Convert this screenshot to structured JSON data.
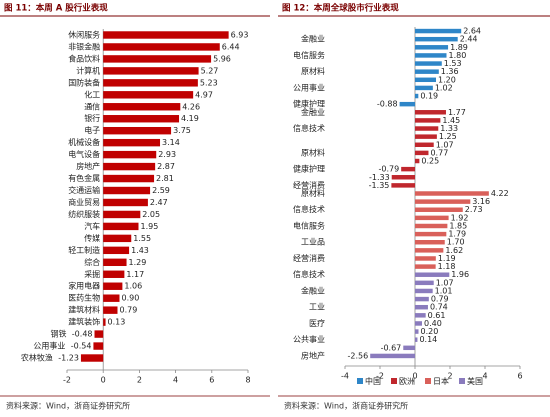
{
  "chart_data": [
    {
      "type": "bar",
      "title": "图 11：本周 A 股行业表现",
      "source": "资料来源：Wind，浙商证券研究所",
      "color": "#c00000",
      "categories": [
        "休闲服务",
        "非银金融",
        "食品饮料",
        "计算机",
        "国防装备",
        "化工",
        "通信",
        "银行",
        "电子",
        "机械设备",
        "电气设备",
        "房地产",
        "有色金属",
        "交通运输",
        "商业贸易",
        "纺织服装",
        "汽车",
        "传媒",
        "轻工制造",
        "综合",
        "采掘",
        "家用电器",
        "医药生物",
        "建筑材料",
        "建筑装饰",
        "钢铁",
        "公用事业",
        "农林牧渔"
      ],
      "values": [
        6.93,
        6.44,
        5.96,
        5.27,
        5.23,
        4.97,
        4.26,
        4.19,
        3.75,
        3.14,
        2.93,
        2.87,
        2.81,
        2.59,
        2.47,
        2.05,
        1.95,
        1.55,
        1.43,
        1.29,
        1.17,
        1.06,
        0.9,
        0.79,
        0.13,
        -0.48,
        -0.54,
        -1.23
      ],
      "value_labels": [
        "6.93",
        "6.44",
        "5.96",
        "5.27",
        "5.23",
        "4.97",
        "4.26",
        "4.19",
        "3.75",
        "3.14",
        "2.93",
        "2.87",
        "2.81",
        "2.59",
        "2.47",
        "2.05",
        "1.95",
        "1.55",
        "1.43",
        "1.29",
        "1.17",
        "1.06",
        "0.90",
        "0.79",
        "0.13",
        "-0.48",
        "-0.54",
        "-1.23"
      ],
      "xlim": [
        -2,
        8
      ],
      "xticks": [
        -2,
        0,
        2,
        4,
        6,
        8
      ]
    },
    {
      "type": "bar",
      "title": "图 12：本周全球股市行业表现",
      "source": "资料来源：Wind，浙商证券研究所",
      "categories": [
        null,
        "金融业",
        null,
        "电信服务",
        null,
        "原材料",
        null,
        "公用事业",
        null,
        "健康护理",
        "金融业",
        null,
        "信息技术",
        null,
        null,
        "原材料",
        null,
        "健康护理",
        null,
        "经营消费",
        "原材料",
        null,
        "信息技术",
        null,
        "电信服务",
        null,
        "工业品",
        null,
        "经营消费",
        null,
        "信息技术",
        null,
        "金融业",
        null,
        "工业",
        null,
        "医疗",
        null,
        "公共事业",
        null,
        "房地产"
      ],
      "series": [
        {
          "name": "中国",
          "color": "#2e86c8",
          "values": [
            2.64,
            2.44,
            1.89,
            1.8,
            1.53,
            1.36,
            1.2,
            1.02,
            0.19,
            -0.88,
            null,
            null,
            null,
            null,
            null,
            null,
            null,
            null,
            null,
            null,
            null,
            null,
            null,
            null,
            null,
            null,
            null,
            null,
            null,
            null,
            null,
            null,
            null,
            null,
            null,
            null,
            null,
            null,
            null,
            null,
            null
          ],
          "value_labels": [
            "2.64",
            "2.44",
            "1.89",
            "1.80",
            "1.53",
            "1.36",
            "1.20",
            "1.02",
            "0.19",
            "-0.88",
            null,
            null,
            null,
            null,
            null,
            null,
            null,
            null,
            null,
            null,
            null,
            null,
            null,
            null,
            null,
            null,
            null,
            null,
            null,
            null,
            null,
            null,
            null,
            null,
            null,
            null,
            null,
            null,
            null,
            null,
            null
          ]
        },
        {
          "name": "欧洲",
          "color": "#c0272d",
          "values": [
            null,
            null,
            null,
            null,
            null,
            null,
            null,
            null,
            null,
            null,
            1.77,
            1.45,
            1.33,
            1.25,
            1.07,
            0.77,
            0.25,
            -0.79,
            -1.33,
            -1.35,
            null,
            null,
            null,
            null,
            null,
            null,
            null,
            null,
            null,
            null,
            null,
            null,
            null,
            null,
            null,
            null,
            null,
            null,
            null,
            null,
            null
          ],
          "value_labels": [
            null,
            null,
            null,
            null,
            null,
            null,
            null,
            null,
            null,
            null,
            "1.77",
            "1.45",
            "1.33",
            "1.25",
            "1.07",
            "0.77",
            "0.25",
            "-0.79",
            "-1.33",
            "-1.35",
            null,
            null,
            null,
            null,
            null,
            null,
            null,
            null,
            null,
            null,
            null,
            null,
            null,
            null,
            null,
            null,
            null,
            null,
            null,
            null,
            null
          ]
        },
        {
          "name": "日本",
          "color": "#d9605a",
          "values": [
            null,
            null,
            null,
            null,
            null,
            null,
            null,
            null,
            null,
            null,
            null,
            null,
            null,
            null,
            null,
            null,
            null,
            null,
            null,
            null,
            4.22,
            3.16,
            2.73,
            1.92,
            1.85,
            1.79,
            1.7,
            1.62,
            1.19,
            1.18,
            null,
            null,
            null,
            null,
            null,
            null,
            null,
            null,
            null,
            null,
            null
          ],
          "value_labels": [
            null,
            null,
            null,
            null,
            null,
            null,
            null,
            null,
            null,
            null,
            null,
            null,
            null,
            null,
            null,
            null,
            null,
            null,
            null,
            null,
            "4.22",
            "3.16",
            "2.73",
            "1.92",
            "1.85",
            "1.79",
            "1.70",
            "1.62",
            "1.19",
            "1.18",
            null,
            null,
            null,
            null,
            null,
            null,
            null,
            null,
            null,
            null,
            null
          ]
        },
        {
          "name": "美国",
          "color": "#8a7bbd",
          "values": [
            null,
            null,
            null,
            null,
            null,
            null,
            null,
            null,
            null,
            null,
            null,
            null,
            null,
            null,
            null,
            null,
            null,
            null,
            null,
            null,
            null,
            null,
            null,
            null,
            null,
            null,
            null,
            null,
            null,
            null,
            1.96,
            1.07,
            1.01,
            0.79,
            0.74,
            0.61,
            0.4,
            0.2,
            0.14,
            -0.67,
            -2.56
          ],
          "value_labels": [
            null,
            null,
            null,
            null,
            null,
            null,
            null,
            null,
            null,
            null,
            null,
            null,
            null,
            null,
            null,
            null,
            null,
            null,
            null,
            null,
            null,
            null,
            null,
            null,
            null,
            null,
            null,
            null,
            null,
            null,
            "1.96",
            "1.07",
            "1.01",
            "0.79",
            "0.74",
            "0.61",
            "0.40",
            "0.20",
            "0.14",
            "-0.67",
            "-2.56"
          ]
        }
      ],
      "xlim": [
        -4,
        6
      ],
      "xticks": [
        -4,
        -2,
        0,
        2,
        4,
        6
      ]
    }
  ]
}
